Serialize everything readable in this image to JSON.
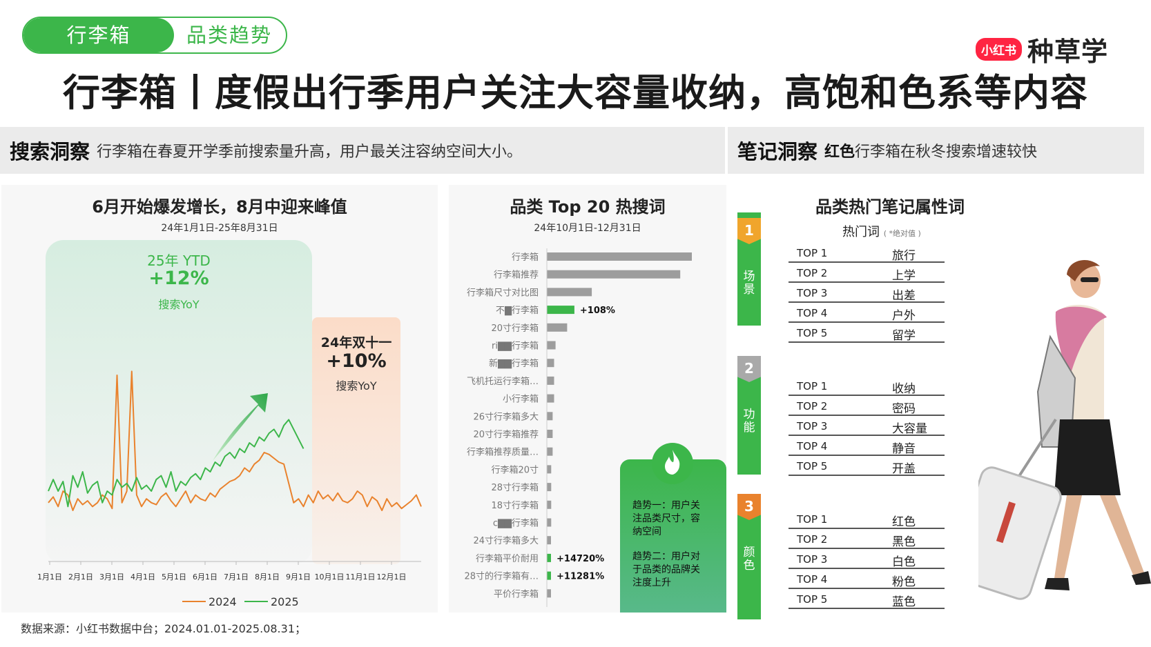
{
  "header": {
    "tag_primary": "行李箱",
    "tag_secondary": "品类趋势",
    "brand_badge": "小红书",
    "brand_name": "种草学",
    "title": "行李箱丨度假出行季用户关注大容量收纳，高饱和色系等内容"
  },
  "insights": {
    "search_key": "搜索洞察",
    "search_text": "行李箱在春夏开学季前搜索量升高，用户最关注容纳空间大小。",
    "note_key": "笔记洞察",
    "note_highlight": "红色",
    "note_text": "行李箱在秋冬搜索增速较快"
  },
  "trend_panel": {
    "title": "6月开始爆发增长，8月中迎来峰值",
    "subtitle": "24年1月1日-25年8月31日",
    "ytd_label": "25年 YTD",
    "ytd_value": "+12%",
    "ytd_caption": "搜索YoY",
    "d11_label": "24年双十一",
    "d11_value": "+10%",
    "d11_caption": "搜索YoY",
    "colors": {
      "s2024": "#e9822d",
      "s2025": "#3cb64a",
      "ytd_bg": "#dff0e6",
      "d11_bg": "#fbe3d4"
    }
  },
  "top20_panel": {
    "title": "品类 Top 20 热搜词",
    "subtitle": "24年10月1日-12月31日",
    "trend_box": {
      "line1": "趋势一：用户关",
      "line2": "注品类尺寸，容",
      "line3": "纳空间",
      "line4": "趋势二：用户对",
      "line5": "于品类的品牌关",
      "line6": "注度上升"
    }
  },
  "attr_panel": {
    "title": "品类热门笔记属性词",
    "hot_label": "热门词",
    "hot_note": "( *绝对值 )",
    "groups": [
      {
        "num": "1",
        "label": [
          "场",
          "景"
        ],
        "rows": [
          {
            "rank": "TOP 1",
            "word": "旅行"
          },
          {
            "rank": "TOP 2",
            "word": "上学"
          },
          {
            "rank": "TOP 3",
            "word": "出差"
          },
          {
            "rank": "TOP 4",
            "word": "户外"
          },
          {
            "rank": "TOP 5",
            "word": "留学"
          }
        ]
      },
      {
        "num": "2",
        "label": [
          "功",
          "能"
        ],
        "rows": [
          {
            "rank": "TOP 1",
            "word": "收纳"
          },
          {
            "rank": "TOP 2",
            "word": "密码"
          },
          {
            "rank": "TOP 3",
            "word": "大容量"
          },
          {
            "rank": "TOP 4",
            "word": "静音"
          },
          {
            "rank": "TOP 5",
            "word": "开盖"
          }
        ]
      },
      {
        "num": "3",
        "label": [
          "颜",
          "色"
        ],
        "rows": [
          {
            "rank": "TOP 1",
            "word": "红色"
          },
          {
            "rank": "TOP 2",
            "word": "黑色"
          },
          {
            "rank": "TOP 3",
            "word": "白色"
          },
          {
            "rank": "TOP 4",
            "word": "粉色"
          },
          {
            "rank": "TOP 5",
            "word": "蓝色"
          }
        ]
      }
    ]
  },
  "source": "数据来源：小红书数据中台；2024.01.01-2025.08.31；",
  "chart_data": [
    {
      "type": "line",
      "title": "6月开始爆发增长，8月中迎来峰值",
      "x_ticks": [
        "1月1日",
        "2月1日",
        "3月1日",
        "4月1日",
        "5月1日",
        "6月1日",
        "7月1日",
        "8月1日",
        "9月1日",
        "10月1日",
        "11月1日",
        "12月1日"
      ],
      "legend_position": "bottom",
      "series": [
        {
          "name": "2024",
          "color": "#e9822d",
          "values": [
            24,
            27,
            22,
            30,
            28,
            20,
            26,
            23,
            25,
            22,
            24,
            28,
            26,
            21,
            90,
            24,
            30,
            92,
            28,
            22,
            26,
            24,
            23,
            27,
            29,
            25,
            22,
            26,
            30,
            24,
            28,
            26,
            25,
            29,
            27,
            31,
            33,
            35,
            36,
            38,
            42,
            40,
            44,
            46,
            50,
            49,
            47,
            45,
            44,
            34,
            24,
            26,
            22,
            28,
            24,
            30,
            26,
            28,
            25,
            29,
            25,
            24,
            26,
            30,
            28,
            22,
            27,
            25,
            20,
            26,
            22,
            24,
            21,
            23,
            25,
            28,
            22
          ]
        },
        {
          "name": "2025",
          "color": "#3cb64a",
          "values": [
            30,
            36,
            30,
            35,
            22,
            38,
            32,
            40,
            29,
            33,
            35,
            24,
            30,
            28,
            36,
            32,
            34,
            30,
            37,
            31,
            33,
            30,
            36,
            38,
            32,
            40,
            30,
            35,
            33,
            37,
            39,
            36,
            42,
            40,
            45,
            43,
            48,
            50,
            47,
            52,
            50,
            55,
            53,
            58,
            56,
            60,
            62,
            58,
            64,
            67,
            62,
            57,
            52
          ]
        }
      ]
    },
    {
      "type": "bar",
      "title": "品类 Top 20 热搜词",
      "categories": [
        "行李箱",
        "行李箱推荐",
        "行李箱尺寸对比图",
        "不▇行李箱",
        "20寸行李箱",
        "ri▇▇行李箱",
        "新▇▇行李箱",
        "飞机托运行李箱…",
        "小行李箱",
        "26寸行李箱多大",
        "20寸行李箱推荐",
        "行李箱推荐质量…",
        "行李箱20寸",
        "28寸行李箱",
        "18寸行李箱",
        "c▇▇行李箱",
        "24寸行李箱多大",
        "行李箱平价耐用",
        "28寸的行李箱有…",
        "平价行李箱"
      ],
      "values": [
        100,
        92,
        31,
        19,
        14,
        6,
        5,
        5,
        5,
        4,
        4,
        4,
        3,
        3,
        3,
        3,
        2,
        2,
        2,
        1
      ],
      "highlight": [
        false,
        false,
        false,
        true,
        false,
        false,
        false,
        false,
        false,
        false,
        false,
        false,
        false,
        false,
        false,
        false,
        false,
        true,
        true,
        false
      ],
      "labels": [
        "",
        "",
        "",
        "+108%",
        "",
        "",
        "",
        "",
        "",
        "",
        "",
        "",
        "",
        "",
        "",
        "",
        "",
        "+14720%",
        "+11281%",
        ""
      ],
      "colors": {
        "default": "#9d9d9d",
        "highlight": "#3cb64a"
      }
    }
  ]
}
